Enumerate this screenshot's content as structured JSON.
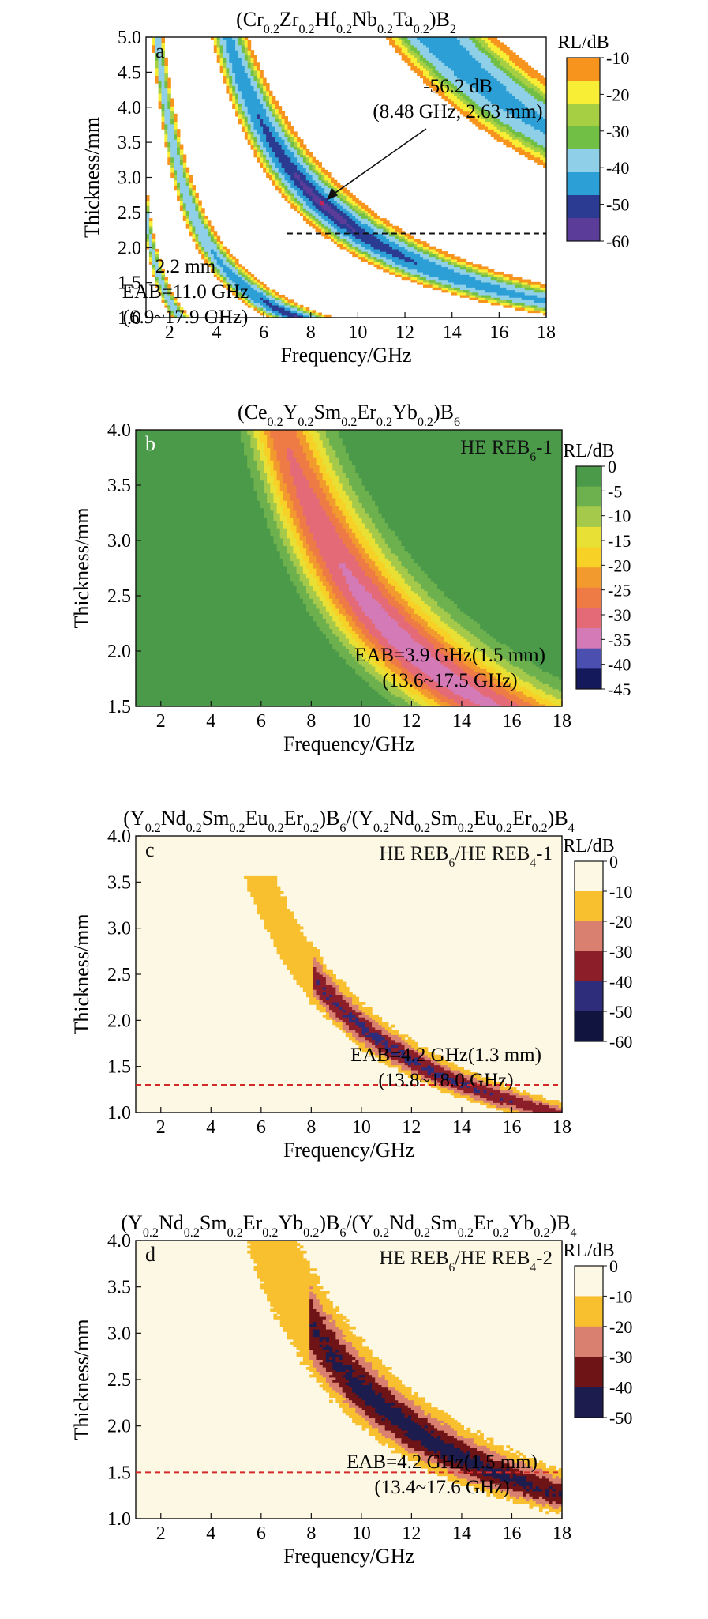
{
  "chart_data": [
    {
      "type": "heatmap",
      "panel": "a",
      "title": "(Cr0.2Zr0.2Hf0.2Nb0.2Ta0.2)B2",
      "title_parts": [
        [
          "(Cr",
          ""
        ],
        [
          "0.2",
          "s"
        ],
        [
          "Zr",
          ""
        ],
        [
          "0.2",
          "s"
        ],
        [
          "Hf",
          ""
        ],
        [
          "0.2",
          "s"
        ],
        [
          "Nb",
          ""
        ],
        [
          "0.2",
          "s"
        ],
        [
          "Ta",
          ""
        ],
        [
          "0.2",
          "s"
        ],
        [
          ")B",
          ""
        ],
        [
          "2",
          "s"
        ]
      ],
      "xlabel": "Frequency/GHz",
      "ylabel": "Thickness/mm",
      "xlim": [
        1,
        18
      ],
      "ylim": [
        1.0,
        5.0
      ],
      "x_ticks": [
        2,
        4,
        6,
        8,
        10,
        12,
        14,
        16,
        18
      ],
      "y_ticks": [
        "1.0",
        "1.5",
        "2.0",
        "2.5",
        "3.0",
        "3.5",
        "4.0",
        "4.5",
        "5.0"
      ],
      "colorbar": {
        "label": "RL/dB",
        "ticks": [
          "-10",
          "-20",
          "-30",
          "-40",
          "-50",
          "-60"
        ],
        "levels": [
          -10,
          -20,
          -30,
          -40,
          -50,
          -60
        ],
        "colors": [
          "#f7941d",
          "#f7ee35",
          "#a6cf43",
          "#71bf44",
          "#8fd0e8",
          "#2c9fd6",
          "#2a3b91",
          "#5b3d99"
        ]
      },
      "model": {
        "n": 1.0,
        "f_ref": 8.48,
        "t_ref": 2.63,
        "wb": 0.1,
        "wt": 0.055,
        "rl_min": -56.2,
        "periodic": true,
        "n_hi": 1.35
      },
      "minimum": {
        "rl": -56.2,
        "f": 8.48,
        "t": 2.63
      },
      "annotation": {
        "line1": "-56.2 dB",
        "line2": "(8.48 GHz, 2.63 mm)"
      },
      "dashed_line": {
        "y": 2.2,
        "x_from": 7.0,
        "x_to": 18.0,
        "color": "#111111"
      },
      "eab_text": [
        "2.2 mm",
        "EAB=11.0 GHz",
        "(6.9~17.9 GHz)"
      ],
      "inset_label": "",
      "inset_label_parts": []
    },
    {
      "type": "heatmap",
      "panel": "b",
      "title": "(Ce0.2Y0.2Sm0.2Er0.2Yb0.2)B6",
      "title_parts": [
        [
          "(Ce",
          ""
        ],
        [
          "0.2",
          "s"
        ],
        [
          "Y",
          ""
        ],
        [
          "0.2",
          "s"
        ],
        [
          "Sm",
          ""
        ],
        [
          "0.2",
          "s"
        ],
        [
          "Er",
          ""
        ],
        [
          "0.2",
          "s"
        ],
        [
          "Yb",
          ""
        ],
        [
          "0.2",
          "s"
        ],
        [
          ")B",
          ""
        ],
        [
          "6",
          "s"
        ]
      ],
      "xlabel": "Frequency/GHz",
      "ylabel": "Thickness/mm",
      "xlim": [
        1,
        18
      ],
      "ylim": [
        1.5,
        4.0
      ],
      "x_ticks": [
        2,
        4,
        6,
        8,
        10,
        12,
        14,
        16,
        18
      ],
      "y_ticks": [
        "1.5",
        "2.0",
        "2.5",
        "3.0",
        "3.5",
        "4.0"
      ],
      "colorbar": {
        "label": "RL/dB",
        "ticks": [
          "0",
          "-5",
          "-10",
          "-15",
          "-20",
          "-25",
          "-30",
          "-35",
          "-40",
          "-45"
        ],
        "levels": [
          0,
          -5,
          -10,
          -15,
          -20,
          -25,
          -30,
          -35,
          -40,
          -45
        ],
        "colors": [
          "#4a9a4a",
          "#6db14e",
          "#a5c94a",
          "#e8e034",
          "#f7d126",
          "#f29a2e",
          "#ee7a45",
          "#e46a78",
          "#d37ab7",
          "#4a4fb0",
          "#14195c"
        ]
      },
      "model": {
        "n": 1.2,
        "f_ref": 12.0,
        "t_ref": 2.01,
        "wb": 0.17,
        "wt": 0.055,
        "rl_min": -34,
        "periodic": false
      },
      "minimum": null,
      "annotation": null,
      "dashed_line": null,
      "eab_text": [
        "EAB=3.9 GHz(1.5 mm)",
        "(13.6~17.5 GHz)"
      ],
      "inset_label": "HE REB6-1",
      "inset_label_parts": [
        [
          "HE REB",
          ""
        ],
        [
          "6",
          "s"
        ],
        [
          "-1",
          ""
        ]
      ]
    },
    {
      "type": "heatmap",
      "panel": "c",
      "title": "(Y0.2Nd0.2Sm0.2Eu0.2Er0.2)B6/(Y0.2Nd0.2Sm0.2Eu0.2Er0.2)B4",
      "title_parts": [
        [
          "(Y",
          ""
        ],
        [
          "0.2",
          "s"
        ],
        [
          "Nd",
          ""
        ],
        [
          "0.2",
          "s"
        ],
        [
          "Sm",
          ""
        ],
        [
          "0.2",
          "s"
        ],
        [
          "Eu",
          ""
        ],
        [
          "0.2",
          "s"
        ],
        [
          "Er",
          ""
        ],
        [
          "0.2",
          "s"
        ],
        [
          ")B",
          ""
        ],
        [
          "6",
          "s"
        ],
        [
          "/(Y",
          ""
        ],
        [
          "0.2",
          "s"
        ],
        [
          "Nd",
          ""
        ],
        [
          "0.2",
          "s"
        ],
        [
          "Sm",
          ""
        ],
        [
          "0.2",
          "s"
        ],
        [
          "Eu",
          ""
        ],
        [
          "0.2",
          "s"
        ],
        [
          "Er",
          ""
        ],
        [
          "0.2",
          "s"
        ],
        [
          ")B",
          ""
        ],
        [
          "4",
          "s"
        ]
      ],
      "xlabel": "Frequency/GHz",
      "ylabel": "Thickness/mm",
      "xlim": [
        1,
        18
      ],
      "ylim": [
        1.0,
        4.0
      ],
      "x_ticks": [
        2,
        4,
        6,
        8,
        10,
        12,
        14,
        16,
        18
      ],
      "y_ticks": [
        "1.0",
        "1.5",
        "2.0",
        "2.5",
        "3.0",
        "3.5",
        "4.0"
      ],
      "colorbar": {
        "label": "RL/dB",
        "ticks": [
          "0",
          "-10",
          "-20",
          "-30",
          "-40",
          "-50",
          "-60"
        ],
        "levels": [
          0,
          -10,
          -20,
          -30,
          -40,
          -50,
          -60
        ],
        "colors": [
          "#fdf8e4",
          "#f8c02f",
          "#d98071",
          "#8b1e29",
          "#2d2d7c",
          "#121440"
        ]
      },
      "model": {
        "n": 1.15,
        "f_ref": 11.3,
        "t_ref": 1.68,
        "wb": 0.075,
        "wt": 0.045,
        "rl_min": -42,
        "periodic": false
      },
      "minimum": null,
      "annotation": null,
      "dashed_line": {
        "y": 1.3,
        "x_from": 1.0,
        "x_to": 18.0,
        "color": "#d42a2a"
      },
      "eab_text": [
        "EAB=4.2 GHz(1.3 mm)",
        "(13.8~18.0 GHz)"
      ],
      "inset_label": "HE REB6/HE REB4-1",
      "inset_label_parts": [
        [
          "HE REB",
          ""
        ],
        [
          "6",
          "s"
        ],
        [
          "/HE REB",
          ""
        ],
        [
          "4",
          "s"
        ],
        [
          "-1",
          ""
        ]
      ]
    },
    {
      "type": "heatmap",
      "panel": "d",
      "title": "(Y0.2Nd0.2Sm0.2Er0.2Yb0.2)B6/(Y0.2Nd0.2Sm0.2Er0.2Yb0.2)B4",
      "title_parts": [
        [
          "(Y",
          ""
        ],
        [
          "0.2",
          "s"
        ],
        [
          "Nd",
          ""
        ],
        [
          "0.2",
          "s"
        ],
        [
          "Sm",
          ""
        ],
        [
          "0.2",
          "s"
        ],
        [
          "Er",
          ""
        ],
        [
          "0.2",
          "s"
        ],
        [
          "Yb",
          ""
        ],
        [
          "0.2",
          "s"
        ],
        [
          ")B",
          ""
        ],
        [
          "6",
          "s"
        ],
        [
          "/(Y",
          ""
        ],
        [
          "0.2",
          "s"
        ],
        [
          "Nd",
          ""
        ],
        [
          "0.2",
          "s"
        ],
        [
          "Sm",
          ""
        ],
        [
          "0.2",
          "s"
        ],
        [
          "Er",
          ""
        ],
        [
          "0.2",
          "s"
        ],
        [
          "Yb",
          ""
        ],
        [
          "0.2",
          "s"
        ],
        [
          ")B",
          ""
        ],
        [
          "4",
          "s"
        ]
      ],
      "xlabel": "Frequency/GHz",
      "ylabel": "Thickness/mm",
      "xlim": [
        1,
        18
      ],
      "ylim": [
        1.0,
        4.0
      ],
      "x_ticks": [
        2,
        4,
        6,
        8,
        10,
        12,
        14,
        16,
        18
      ],
      "y_ticks": [
        "1.0",
        "1.5",
        "2.0",
        "2.5",
        "3.0",
        "3.5",
        "4.0"
      ],
      "colorbar": {
        "label": "RL/dB",
        "ticks": [
          "0",
          "-10",
          "-20",
          "-30",
          "-40",
          "-50"
        ],
        "levels": [
          0,
          -10,
          -20,
          -30,
          -40,
          -50
        ],
        "colors": [
          "#fdf8e4",
          "#f8c02f",
          "#d98071",
          "#6e1416",
          "#1c1c4e"
        ]
      },
      "model": {
        "n": 1.1,
        "f_ref": 12.0,
        "t_ref": 1.97,
        "wb": 0.11,
        "wt": 0.05,
        "rl_min": -45,
        "periodic": false
      },
      "minimum": null,
      "annotation": null,
      "dashed_line": {
        "y": 1.5,
        "x_from": 1.0,
        "x_to": 18.0,
        "color": "#d42a2a"
      },
      "eab_text": [
        "EAB=4.2 GHz(1.5 mm)",
        "(13.4~17.6 GHz)"
      ],
      "inset_label": "HE REB6/HE REB4-2",
      "inset_label_parts": [
        [
          "HE REB",
          ""
        ],
        [
          "6",
          "s"
        ],
        [
          "/HE REB",
          ""
        ],
        [
          "4",
          "s"
        ],
        [
          "-2",
          ""
        ]
      ]
    }
  ]
}
